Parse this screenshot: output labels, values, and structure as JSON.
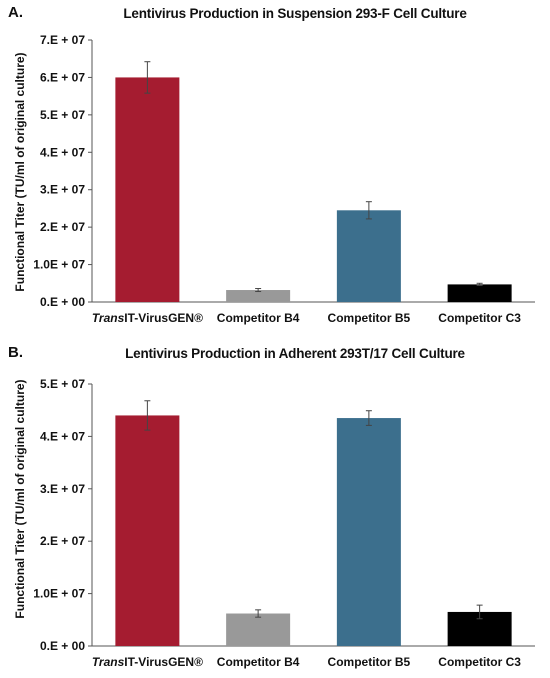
{
  "chart_data": [
    {
      "panel": "A.",
      "type": "bar",
      "title": "Lentivirus Production in Suspension 293-F Cell Culture",
      "ylabel": "Functional Titer (TU/ml of original culture)",
      "xlabel": "",
      "categories": [
        "TransIT-VirusGEN®",
        "Competitor B4",
        "Competitor B5",
        "Competitor C3"
      ],
      "values": [
        60000000,
        3200000,
        24500000,
        4700000
      ],
      "errors": [
        4200000,
        400000,
        2300000,
        300000
      ],
      "colors": [
        "#a51c30",
        "#999999",
        "#3c6f8d",
        "#000000"
      ],
      "ylim": [
        0,
        70000000
      ],
      "yticks": [
        0,
        10000000,
        20000000,
        30000000,
        40000000,
        50000000,
        60000000,
        70000000
      ],
      "ytick_labels": [
        "0.E + 00",
        "1.0E + 07",
        "2.E + 07",
        "3.E + 07",
        "4.E + 07",
        "5.E + 07",
        "6.E + 07",
        "7.E + 07"
      ],
      "grid": false,
      "legend": "none"
    },
    {
      "panel": "B.",
      "type": "bar",
      "title": "Lentivirus Production in Adherent 293T/17 Cell Culture",
      "ylabel": "Functional Titer (TU/ml of original culture)",
      "xlabel": "",
      "categories": [
        "TransIT-VirusGEN®",
        "Competitor B4",
        "Competitor B5",
        "Competitor C3"
      ],
      "values": [
        44000000,
        6200000,
        43500000,
        6500000
      ],
      "errors": [
        2800000,
        700000,
        1400000,
        1300000
      ],
      "colors": [
        "#a51c30",
        "#999999",
        "#3c6f8d",
        "#000000"
      ],
      "ylim": [
        0,
        50000000
      ],
      "yticks": [
        0,
        10000000,
        20000000,
        30000000,
        40000000,
        50000000
      ],
      "ytick_labels": [
        "0.E + 00",
        "1.0E + 07",
        "2.E + 07",
        "3.E + 07",
        "4.E + 07",
        "5.E + 07"
      ],
      "grid": false,
      "legend": "none"
    }
  ]
}
